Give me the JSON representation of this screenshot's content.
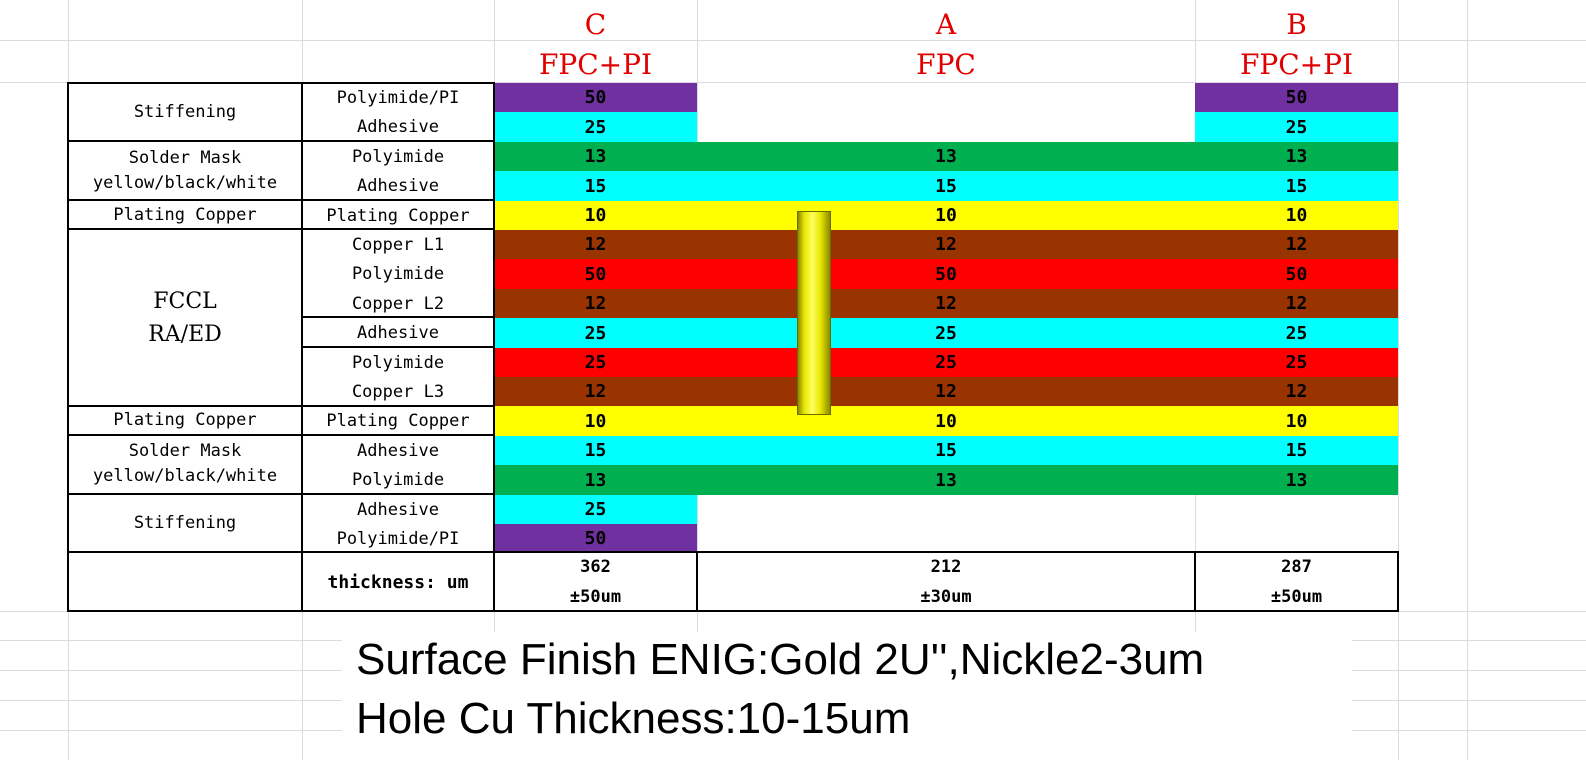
{
  "columns": [
    {
      "letter": "C",
      "type": "FPC+PI"
    },
    {
      "letter": "A",
      "type": "FPC"
    },
    {
      "letter": "B",
      "type": "FPC+PI"
    }
  ],
  "categories": {
    "stiffening_top": "Stiffening",
    "solder_top_1": "Solder Mask",
    "solder_top_2": "yellow/black/white",
    "plating_top": "Plating Copper",
    "fccl_1": "FCCL",
    "fccl_2": "RA/ED",
    "plating_bottom": "Plating Copper",
    "solder_bottom_1": "Solder Mask",
    "solder_bottom_2": "yellow/black/white",
    "stiffening_bottom": "Stiffening"
  },
  "rows": [
    {
      "material": "Polyimide/PI",
      "color": "#7030a0",
      "c": "50",
      "a": "",
      "b": "50"
    },
    {
      "material": "Adhesive",
      "color": "#00ffff",
      "c": "25",
      "a": "",
      "b": "25"
    },
    {
      "material": "Polyimide",
      "color": "#00b050",
      "c": "13",
      "a": "13",
      "b": "13"
    },
    {
      "material": "Adhesive",
      "color": "#00ffff",
      "c": "15",
      "a": "15",
      "b": "15"
    },
    {
      "material": "Plating Copper",
      "color": "#ffff00",
      "c": "10",
      "a": "10",
      "b": "10"
    },
    {
      "material": "Copper L1",
      "color": "#993300",
      "c": "12",
      "a": "12",
      "b": "12"
    },
    {
      "material": "Polyimide",
      "color": "#ff0000",
      "c": "50",
      "a": "50",
      "b": "50"
    },
    {
      "material": "Copper L2",
      "color": "#993300",
      "c": "12",
      "a": "12",
      "b": "12"
    },
    {
      "material": "Adhesive",
      "color": "#00ffff",
      "c": "25",
      "a": "25",
      "b": "25"
    },
    {
      "material": "Polyimide",
      "color": "#ff0000",
      "c": "25",
      "a": "25",
      "b": "25"
    },
    {
      "material": "Copper L3",
      "color": "#993300",
      "c": "12",
      "a": "12",
      "b": "12"
    },
    {
      "material": "Plating Copper",
      "color": "#ffff00",
      "c": "10",
      "a": "10",
      "b": "10"
    },
    {
      "material": "Adhesive",
      "color": "#00ffff",
      "c": "15",
      "a": "15",
      "b": "15"
    },
    {
      "material": "Polyimide",
      "color": "#00b050",
      "c": "13",
      "a": "13",
      "b": "13"
    },
    {
      "material": "Adhesive",
      "color": "#00ffff",
      "c": "25",
      "a": "",
      "b": ""
    },
    {
      "material": "Polyimide/PI",
      "color": "#7030a0",
      "c": "50",
      "a": "",
      "b": ""
    }
  ],
  "thickness": {
    "label": "thickness: um",
    "c_value": "362",
    "c_tol": "±50um",
    "a_value": "212",
    "a_tol": "±30um",
    "b_value": "287",
    "b_tol": "±50um"
  },
  "notes": {
    "surface_finish": "Surface Finish ENIG:Gold 2U'',Nickle2-3um",
    "hole_cu": "Hole Cu Thickness:10-15um"
  },
  "via_color": "#ffff00"
}
